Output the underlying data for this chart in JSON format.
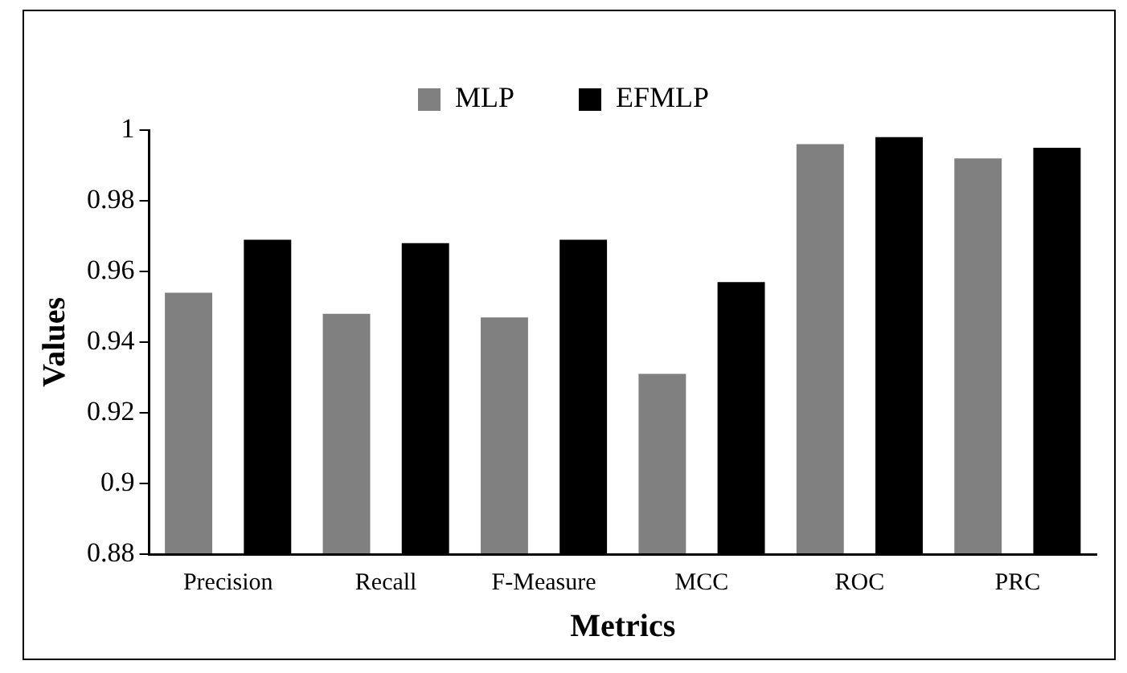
{
  "chart_data": {
    "type": "bar",
    "xlabel": "Metrics",
    "ylabel": "Values",
    "categories": [
      "Precision",
      "Recall",
      "F-Measure",
      "MCC",
      "ROC",
      "PRC"
    ],
    "series": [
      {
        "name": "MLP",
        "color": "#808080",
        "values": [
          0.954,
          0.948,
          0.947,
          0.931,
          0.996,
          0.992
        ]
      },
      {
        "name": "EFMLP",
        "color": "#000000",
        "values": [
          0.969,
          0.968,
          0.969,
          0.957,
          0.998,
          0.995
        ]
      }
    ],
    "ylim": [
      0.88,
      1
    ],
    "yticks": [
      0.88,
      0.9,
      0.92,
      0.94,
      0.96,
      0.98,
      1
    ],
    "grid": false,
    "legend": "top"
  }
}
